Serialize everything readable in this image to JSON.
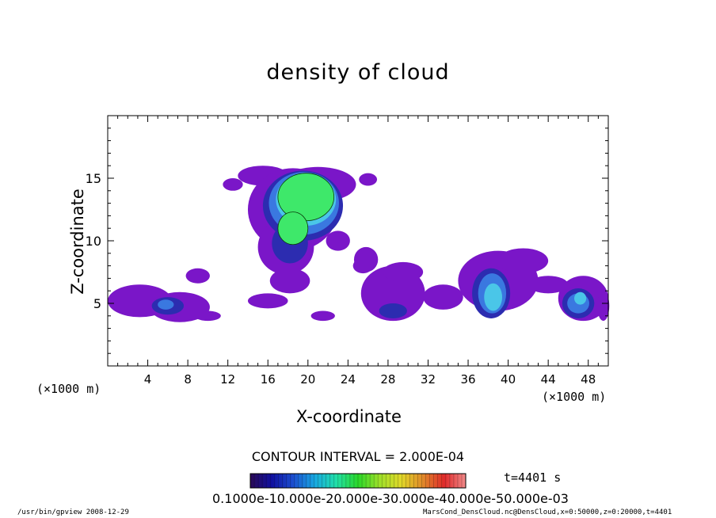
{
  "chart_data": {
    "type": "heatmap",
    "title": "density of cloud",
    "xlabel": "X-coordinate",
    "ylabel": "Z-coordinate",
    "x_unit": "(×1000 m)",
    "xlim": [
      0,
      50
    ],
    "ylim": [
      0,
      20
    ],
    "x_ticks": [
      4,
      8,
      12,
      16,
      20,
      24,
      28,
      32,
      36,
      40,
      44,
      48
    ],
    "y_ticks": [
      5,
      10,
      15
    ],
    "contour_interval": "CONTOUR INTERVAL = 2.000E-04",
    "time_label": "t=4401 s",
    "colorbar_labels": "0.1000e-10.000e-20.000e-30.000e-40.000e-50.000e-03",
    "colorbar_colors": [
      "#2a0a55",
      "#1010a0",
      "#1c4fd0",
      "#18a8e0",
      "#22e0a8",
      "#2ad82a",
      "#9ee02a",
      "#e0d82a",
      "#e08a2a",
      "#e02a2a",
      "#f08a8a"
    ],
    "fill_colors": {
      "level1": "#7a16c8",
      "level2": "#2c2cb0",
      "level3": "#3a78e0",
      "level4": "#4ac6e8",
      "level5": "#3ee86a"
    },
    "cloud_cells": [
      {
        "x": 15.5,
        "z": 15.2,
        "rx": 2.5,
        "rz": 0.8,
        "level": 1
      },
      {
        "x": 21.0,
        "z": 14.5,
        "rx": 3.8,
        "rz": 1.4,
        "level": 1
      },
      {
        "x": 18.5,
        "z": 12.5,
        "rx": 4.5,
        "rz": 3.3,
        "level": 1
      },
      {
        "x": 17.8,
        "z": 9.5,
        "rx": 2.8,
        "rz": 2.2,
        "level": 1
      },
      {
        "x": 18.2,
        "z": 6.8,
        "rx": 2.0,
        "rz": 1.0,
        "level": 1
      },
      {
        "x": 19.5,
        "z": 12.8,
        "rx": 4.0,
        "rz": 2.8,
        "level": 2
      },
      {
        "x": 18.2,
        "z": 9.8,
        "rx": 1.8,
        "rz": 1.6,
        "level": 2
      },
      {
        "x": 19.6,
        "z": 13.0,
        "rx": 3.5,
        "rz": 2.5,
        "level": 3
      },
      {
        "x": 19.8,
        "z": 13.3,
        "rx": 3.0,
        "rz": 2.1,
        "level": 4
      },
      {
        "x": 19.8,
        "z": 13.5,
        "rx": 2.8,
        "rz": 1.9,
        "level": 5
      },
      {
        "x": 18.5,
        "z": 11.0,
        "rx": 1.5,
        "rz": 1.3,
        "level": 5
      },
      {
        "x": 12.5,
        "z": 14.5,
        "rx": 1.0,
        "rz": 0.5,
        "level": 1
      },
      {
        "x": 26.0,
        "z": 14.9,
        "rx": 0.9,
        "rz": 0.5,
        "level": 1
      },
      {
        "x": 23.0,
        "z": 10.0,
        "rx": 1.2,
        "rz": 0.8,
        "level": 1
      },
      {
        "x": 25.5,
        "z": 8.0,
        "rx": 1.0,
        "rz": 0.6,
        "level": 1
      },
      {
        "x": 3.2,
        "z": 5.2,
        "rx": 3.2,
        "rz": 1.3,
        "level": 1
      },
      {
        "x": 7.2,
        "z": 4.7,
        "rx": 3.0,
        "rz": 1.2,
        "level": 1
      },
      {
        "x": 6.0,
        "z": 4.8,
        "rx": 1.6,
        "rz": 0.7,
        "level": 2
      },
      {
        "x": 5.8,
        "z": 4.9,
        "rx": 0.8,
        "rz": 0.4,
        "level": 3
      },
      {
        "x": 9.0,
        "z": 7.2,
        "rx": 1.2,
        "rz": 0.6,
        "level": 1
      },
      {
        "x": 10.0,
        "z": 4.0,
        "rx": 1.3,
        "rz": 0.4,
        "level": 1
      },
      {
        "x": 16.0,
        "z": 5.2,
        "rx": 2.0,
        "rz": 0.6,
        "level": 1
      },
      {
        "x": 21.5,
        "z": 4.0,
        "rx": 1.2,
        "rz": 0.4,
        "level": 1
      },
      {
        "x": 25.8,
        "z": 8.5,
        "rx": 1.2,
        "rz": 1.0,
        "level": 1
      },
      {
        "x": 28.5,
        "z": 5.8,
        "rx": 3.2,
        "rz": 2.2,
        "level": 1
      },
      {
        "x": 29.5,
        "z": 7.5,
        "rx": 2.0,
        "rz": 0.8,
        "level": 1
      },
      {
        "x": 28.5,
        "z": 4.4,
        "rx": 1.4,
        "rz": 0.6,
        "level": 2
      },
      {
        "x": 33.5,
        "z": 5.5,
        "rx": 2.0,
        "rz": 1.0,
        "level": 1
      },
      {
        "x": 39.0,
        "z": 6.8,
        "rx": 4.0,
        "rz": 2.4,
        "level": 1
      },
      {
        "x": 41.5,
        "z": 8.4,
        "rx": 2.5,
        "rz": 1.0,
        "level": 1
      },
      {
        "x": 44.0,
        "z": 6.5,
        "rx": 2.0,
        "rz": 0.7,
        "level": 1
      },
      {
        "x": 38.3,
        "z": 5.8,
        "rx": 1.9,
        "rz": 2.0,
        "level": 2
      },
      {
        "x": 38.4,
        "z": 5.8,
        "rx": 1.4,
        "rz": 1.6,
        "level": 3
      },
      {
        "x": 38.5,
        "z": 5.5,
        "rx": 0.9,
        "rz": 1.1,
        "level": 4
      },
      {
        "x": 47.5,
        "z": 5.4,
        "rx": 2.5,
        "rz": 1.8,
        "level": 1
      },
      {
        "x": 47.0,
        "z": 5.0,
        "rx": 1.6,
        "rz": 1.2,
        "level": 2
      },
      {
        "x": 47.0,
        "z": 5.0,
        "rx": 1.1,
        "rz": 0.8,
        "level": 3
      },
      {
        "x": 47.2,
        "z": 5.4,
        "rx": 0.6,
        "rz": 0.5,
        "level": 4
      },
      {
        "x": 49.5,
        "z": 4.8,
        "rx": 0.6,
        "rz": 1.2,
        "level": 1
      }
    ]
  },
  "footer": {
    "program": "/usr/bin/gpview  2008-12-29",
    "source": "MarsCond_DensCloud.nc@DensCloud,x=0:50000,z=0:20000,t=4401"
  }
}
